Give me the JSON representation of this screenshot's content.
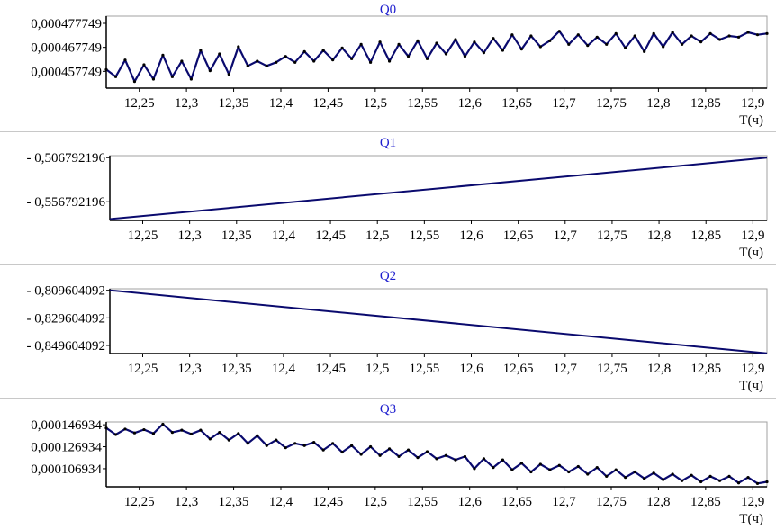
{
  "colors": {
    "title": "#1f1fcf",
    "line": "#0a0a6e",
    "dots": "#000000",
    "axis": "#000000",
    "frame": "#a0a0a0"
  },
  "chart_data": [
    {
      "type": "line",
      "title": "Q0",
      "xlabel": "T(ч)",
      "ylabel": "",
      "xlim": [
        12.215,
        12.915
      ],
      "ylim": [
        0.000450749,
        0.000480749
      ],
      "x_ticks": [
        12.25,
        12.3,
        12.35,
        12.4,
        12.45,
        12.5,
        12.55,
        12.6,
        12.65,
        12.7,
        12.75,
        12.8,
        12.85,
        12.9
      ],
      "x_tick_labels": [
        "12,25",
        "12,3",
        "12,35",
        "12,4",
        "12,45",
        "12,5",
        "12,55",
        "12,6",
        "12,65",
        "12,7",
        "12,75",
        "12,8",
        "12,85",
        "12,9"
      ],
      "y_ticks": [
        0.000457749,
        0.000467749,
        0.000477749
      ],
      "y_tick_labels": [
        "0,000457749",
        "0,000467749",
        "0,000477749"
      ],
      "series": [
        {
          "x": [
            12.215,
            12.225,
            12.235,
            12.245,
            12.255,
            12.265,
            12.275,
            12.285,
            12.295,
            12.305,
            12.315,
            12.325,
            12.335,
            12.345,
            12.355,
            12.365,
            12.375,
            12.385,
            12.395,
            12.405,
            12.415,
            12.425,
            12.435,
            12.445,
            12.455,
            12.465,
            12.475,
            12.485,
            12.495,
            12.505,
            12.515,
            12.525,
            12.535,
            12.545,
            12.555,
            12.565,
            12.575,
            12.585,
            12.595,
            12.605,
            12.615,
            12.625,
            12.635,
            12.645,
            12.655,
            12.665,
            12.675,
            12.685,
            12.695,
            12.705,
            12.715,
            12.725,
            12.735,
            12.745,
            12.755,
            12.765,
            12.775,
            12.785,
            12.795,
            12.805,
            12.815,
            12.825,
            12.835,
            12.845,
            12.855,
            12.865,
            12.875,
            12.885,
            12.895,
            12.905,
            12.915
          ],
          "values": [
            0.0004585,
            0.0004555,
            0.0004625,
            0.0004535,
            0.0004605,
            0.0004545,
            0.0004645,
            0.0004555,
            0.000462,
            0.0004545,
            0.0004665,
            0.000458,
            0.000465,
            0.0004565,
            0.000468,
            0.00046,
            0.000462,
            0.00046,
            0.0004615,
            0.000464,
            0.0004615,
            0.000466,
            0.000462,
            0.0004665,
            0.0004625,
            0.0004675,
            0.000463,
            0.000469,
            0.0004615,
            0.00047,
            0.000462,
            0.000469,
            0.000464,
            0.0004705,
            0.000463,
            0.0004695,
            0.000465,
            0.000471,
            0.000464,
            0.00047,
            0.0004655,
            0.0004715,
            0.0004665,
            0.000473,
            0.000467,
            0.0004725,
            0.000468,
            0.0004705,
            0.0004745,
            0.000469,
            0.000473,
            0.0004685,
            0.000472,
            0.000469,
            0.0004735,
            0.0004675,
            0.0004725,
            0.000466,
            0.0004735,
            0.000468,
            0.000474,
            0.000469,
            0.0004725,
            0.00047,
            0.0004735,
            0.000471,
            0.0004725,
            0.000472,
            0.000474,
            0.000473,
            0.0004735
          ]
        }
      ]
    },
    {
      "type": "line",
      "title": "Q1",
      "xlabel": "T(ч)",
      "ylabel": "",
      "xlim": [
        12.215,
        12.915
      ],
      "ylim": [
        -0.578,
        -0.5045
      ],
      "x_ticks": [
        12.25,
        12.3,
        12.35,
        12.4,
        12.45,
        12.5,
        12.55,
        12.6,
        12.65,
        12.7,
        12.75,
        12.8,
        12.85,
        12.9
      ],
      "x_tick_labels": [
        "12,25",
        "12,3",
        "12,35",
        "12,4",
        "12,45",
        "12,5",
        "12,55",
        "12,6",
        "12,65",
        "12,7",
        "12,75",
        "12,8",
        "12,85",
        "12,9"
      ],
      "y_ticks": [
        -0.506792196,
        -0.556792196
      ],
      "y_tick_labels": [
        "- 0,506792196",
        "- 0,556792196"
      ],
      "series": [
        {
          "x": [
            12.215,
            12.915
          ],
          "values": [
            -0.5765,
            -0.5068
          ]
        }
      ]
    },
    {
      "type": "line",
      "title": "Q2",
      "xlabel": "T(ч)",
      "ylabel": "",
      "xlim": [
        12.215,
        12.915
      ],
      "ylim": [
        -0.8555,
        -0.8085
      ],
      "x_ticks": [
        12.25,
        12.3,
        12.35,
        12.4,
        12.45,
        12.5,
        12.55,
        12.6,
        12.65,
        12.7,
        12.75,
        12.8,
        12.85,
        12.9
      ],
      "x_tick_labels": [
        "12,25",
        "12,3",
        "12,35",
        "12,4",
        "12,45",
        "12,5",
        "12,55",
        "12,6",
        "12,65",
        "12,7",
        "12,75",
        "12,8",
        "12,85",
        "12,9"
      ],
      "y_ticks": [
        -0.809604092,
        -0.829604092,
        -0.849604092
      ],
      "y_tick_labels": [
        "- 0,809604092",
        "- 0,829604092",
        "- 0,849604092"
      ],
      "series": [
        {
          "x": [
            12.215,
            12.915
          ],
          "values": [
            -0.8096,
            -0.8553
          ]
        }
      ]
    },
    {
      "type": "line",
      "title": "Q3",
      "xlabel": "T(ч)",
      "ylabel": "",
      "xlim": [
        12.215,
        12.915
      ],
      "ylim": [
        9.05e-05,
        0.0001495
      ],
      "x_ticks": [
        12.25,
        12.3,
        12.35,
        12.4,
        12.45,
        12.5,
        12.55,
        12.6,
        12.65,
        12.7,
        12.75,
        12.8,
        12.85,
        12.9
      ],
      "x_tick_labels": [
        "12,25",
        "12,3",
        "12,35",
        "12,4",
        "12,45",
        "12,5",
        "12,55",
        "12,6",
        "12,65",
        "12,7",
        "12,75",
        "12,8",
        "12,85",
        "12,9"
      ],
      "y_ticks": [
        0.000106934,
        0.000126934,
        0.000146934
      ],
      "y_tick_labels": [
        "0,000106934",
        "0,000126934",
        "0,000146934"
      ],
      "series": [
        {
          "x": [
            12.215,
            12.225,
            12.235,
            12.245,
            12.255,
            12.265,
            12.275,
            12.285,
            12.295,
            12.305,
            12.315,
            12.325,
            12.335,
            12.345,
            12.355,
            12.365,
            12.375,
            12.385,
            12.395,
            12.405,
            12.415,
            12.425,
            12.435,
            12.445,
            12.455,
            12.465,
            12.475,
            12.485,
            12.495,
            12.505,
            12.515,
            12.525,
            12.535,
            12.545,
            12.555,
            12.565,
            12.575,
            12.585,
            12.595,
            12.605,
            12.615,
            12.625,
            12.635,
            12.645,
            12.655,
            12.665,
            12.675,
            12.685,
            12.695,
            12.705,
            12.715,
            12.725,
            12.735,
            12.745,
            12.755,
            12.765,
            12.775,
            12.785,
            12.795,
            12.805,
            12.815,
            12.825,
            12.835,
            12.845,
            12.855,
            12.865,
            12.875,
            12.885,
            12.895,
            12.905,
            12.915
          ],
          "values": [
            0.000144,
            0.000138,
            0.000143,
            0.0001395,
            0.0001425,
            0.000139,
            0.0001475,
            0.00014,
            0.000142,
            0.0001385,
            0.000142,
            0.000134,
            0.00014,
            0.000133,
            0.000139,
            0.00013,
            0.000137,
            0.000128,
            0.000133,
            0.000126,
            0.00013,
            0.000128,
            0.000131,
            0.000124,
            0.00013,
            0.000122,
            0.000128,
            0.00012,
            0.000127,
            0.000119,
            0.000125,
            0.000118,
            0.000124,
            0.000117,
            0.0001225,
            0.000116,
            0.000119,
            0.000115,
            0.000118,
            0.000107,
            0.000116,
            0.000108,
            0.000115,
            0.000106,
            0.000112,
            0.000104,
            0.000111,
            0.000106,
            0.00011,
            0.000104,
            0.000109,
            0.000102,
            0.000108,
            0.0001,
            0.000106,
            9.9e-05,
            0.000104,
            9.8e-05,
            0.000103,
            9.7e-05,
            0.000102,
            9.6e-05,
            0.000101,
            9.5e-05,
            0.0001,
            9.6e-05,
            0.0001,
            9.4e-05,
            9.9e-05,
            9.35e-05,
            9.5e-05
          ]
        }
      ]
    }
  ]
}
